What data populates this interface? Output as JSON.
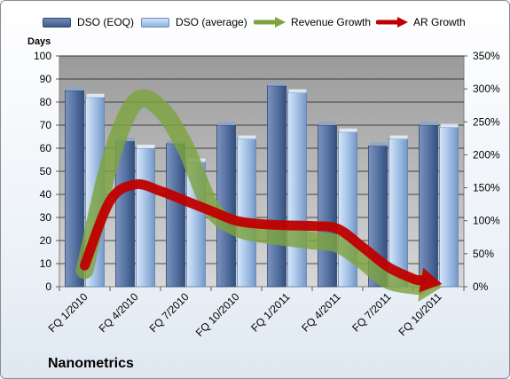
{
  "company_name": "Nanometrics",
  "legend": [
    {
      "label": "DSO (EOQ)",
      "kind": "bar",
      "color": "#4a6797"
    },
    {
      "label": "DSO (average)",
      "kind": "bar",
      "color": "#a9c6ea"
    },
    {
      "label": "Revenue Growth",
      "kind": "arrow",
      "color": "#7ea33f"
    },
    {
      "label": "AR Growth",
      "kind": "arrow",
      "color": "#c00000"
    }
  ],
  "chart_data": {
    "type": "bar",
    "ylabel": "Days",
    "categories": [
      "FQ 1/2010",
      "FQ 4/2010",
      "FQ 7/2010",
      "FQ 10/2010",
      "FQ 1/2011",
      "FQ 4/2011",
      "FQ 7/2011",
      "FQ 10/2011"
    ],
    "ylim": [
      0,
      100
    ],
    "y_ticks": [
      0,
      10,
      20,
      30,
      40,
      50,
      60,
      70,
      80,
      90,
      100
    ],
    "y2lim": [
      0,
      350
    ],
    "y2_ticks": [
      "0%",
      "50%",
      "100%",
      "150%",
      "200%",
      "250%",
      "300%",
      "350%"
    ],
    "grid": true,
    "legend_position": "top",
    "series": [
      {
        "name": "DSO (EOQ)",
        "type": "bar",
        "axis": "left",
        "color": "#4a6797",
        "values": [
          85,
          63,
          62,
          70,
          87,
          70,
          61,
          70
        ]
      },
      {
        "name": "DSO (average)",
        "type": "bar",
        "axis": "left",
        "color": "#a9c6ea",
        "values": [
          82,
          60,
          54,
          64,
          84,
          67,
          64,
          69
        ]
      },
      {
        "name": "Revenue Growth",
        "type": "line",
        "axis": "right",
        "unit": "%",
        "color": "#7ea33f",
        "x": [
          0,
          0.5,
          1.0,
          1.5,
          2.0,
          2.5,
          3.0,
          3.5,
          4.0,
          4.5,
          5.0,
          5.5,
          6.0,
          6.5,
          7.0
        ],
        "values": [
          25,
          190,
          280,
          270,
          210,
          120,
          90,
          80,
          75,
          70,
          65,
          40,
          10,
          2,
          0
        ]
      },
      {
        "name": "AR Growth",
        "type": "line",
        "axis": "right",
        "unit": "%",
        "color": "#c00000",
        "x": [
          0,
          0.5,
          1.0,
          1.5,
          2.0,
          2.5,
          3.0,
          3.5,
          4.0,
          4.5,
          5.0,
          5.5,
          6.0,
          6.5,
          7.0
        ],
        "values": [
          32,
          130,
          155,
          145,
          130,
          115,
          100,
          95,
          93,
          92,
          88,
          60,
          30,
          12,
          5
        ]
      }
    ]
  }
}
